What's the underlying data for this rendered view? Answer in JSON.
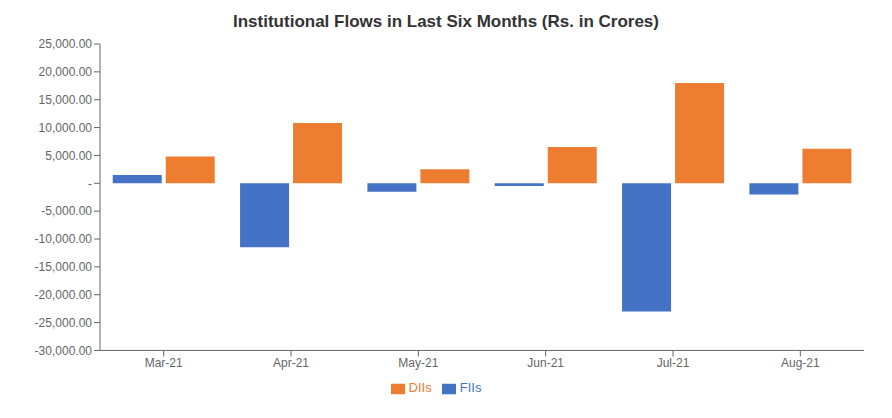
{
  "chart_data": {
    "type": "bar",
    "title": "Institutional Flows in Last Six Months (Rs. in Crores)",
    "categories": [
      "Mar-21",
      "Apr-21",
      "May-21",
      "Jun-21",
      "Jul-21",
      "Aug-21"
    ],
    "series": [
      {
        "name": "FIIs",
        "color": "#4472C4",
        "values": [
          1500,
          -11500,
          -1500,
          -500,
          -23000,
          -2000
        ]
      },
      {
        "name": "DIIs",
        "color": "#ED7D31",
        "values": [
          4800,
          10800,
          2500,
          6500,
          18000,
          6200
        ]
      }
    ],
    "ylim": [
      -30000,
      25000
    ],
    "yticks": [
      {
        "value": 25000,
        "label": "25,000.00"
      },
      {
        "value": 20000,
        "label": "20,000.00"
      },
      {
        "value": 15000,
        "label": "15,000.00"
      },
      {
        "value": 10000,
        "label": "10,000.00"
      },
      {
        "value": 5000,
        "label": "5,000.00"
      },
      {
        "value": 0,
        "label": "-"
      },
      {
        "value": -5000,
        "label": "-5,000.00"
      },
      {
        "value": -10000,
        "label": "-10,000.00"
      },
      {
        "value": -15000,
        "label": "-15,000.00"
      },
      {
        "value": -20000,
        "label": "-20,000.00"
      },
      {
        "value": -25000,
        "label": "-25,000.00"
      },
      {
        "value": -30000,
        "label": "-30,000.00"
      }
    ],
    "grid": false,
    "legend": "bottom"
  }
}
